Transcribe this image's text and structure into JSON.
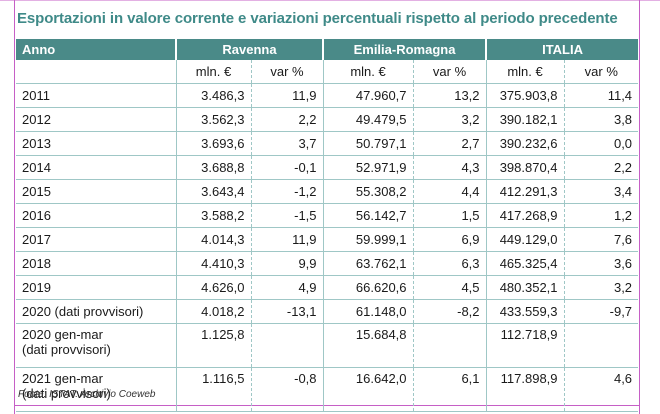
{
  "title": "Esportazioni in valore corrente e variazioni percentuali rispetto al periodo precedente",
  "header": {
    "anno": "Anno",
    "groups": [
      "Ravenna",
      "Emilia-Romagna",
      "ITALIA"
    ],
    "sub": [
      "mln. €",
      "var %",
      "mln. €",
      "var %",
      "mln.  €",
      "var %"
    ]
  },
  "rows": [
    {
      "anno": "2011",
      "cells": [
        "3.486,3",
        "11,9",
        "47.960,7",
        "13,2",
        "375.903,8",
        "11,4"
      ]
    },
    {
      "anno": "2012",
      "cells": [
        "3.562,3",
        "2,2",
        "49.479,5",
        "3,2",
        "390.182,1",
        "3,8"
      ]
    },
    {
      "anno": "2013",
      "cells": [
        "3.693,6",
        "3,7",
        "50.797,1",
        "2,7",
        "390.232,6",
        "0,0"
      ]
    },
    {
      "anno": "2014",
      "cells": [
        "3.688,8",
        "-0,1",
        "52.971,9",
        "4,3",
        "398.870,4",
        "2,2"
      ]
    },
    {
      "anno": "2015",
      "cells": [
        "3.643,4",
        "-1,2",
        "55.308,2",
        "4,4",
        "412.291,3",
        "3,4"
      ]
    },
    {
      "anno": "2016",
      "cells": [
        "3.588,2",
        "-1,5",
        "56.142,7",
        "1,5",
        "417.268,9",
        "1,2"
      ]
    },
    {
      "anno": "2017",
      "cells": [
        "4.014,3",
        "11,9",
        "59.999,1",
        "6,9",
        "449.129,0",
        "7,6"
      ]
    },
    {
      "anno": "2018",
      "cells": [
        "4.410,3",
        "9,9",
        "63.762,1",
        "6,3",
        "465.325,4",
        "3,6"
      ]
    },
    {
      "anno": "2019",
      "cells": [
        "4.626,0",
        "4,9",
        "66.620,6",
        "4,5",
        "480.352,1",
        "3,2"
      ]
    },
    {
      "anno": "2020 (dati provvisori)",
      "cells": [
        "4.018,2",
        "-13,1",
        "61.148,0",
        "-8,2",
        "433.559,3",
        "-9,7"
      ]
    }
  ],
  "tall_rows": [
    {
      "anno_line1": "2020 gen-mar",
      "anno_line2": "(dati provvisori)",
      "cells": [
        "1.125,8",
        "",
        "15.684,8",
        "",
        "112.718,9",
        ""
      ]
    },
    {
      "anno_line1": "2021 gen-mar",
      "anno_line2": "(dati provvisori)",
      "cells": [
        "1.116,5",
        "-0,8",
        "16.642,0",
        "6,1",
        "117.898,9",
        "4,6"
      ]
    }
  ],
  "source": "Fonte: ISTAT: Archivio Coeweb",
  "colors": {
    "header_bg": "#4a8a88",
    "title": "#3f8a88",
    "rule": "#9fc7c6"
  }
}
